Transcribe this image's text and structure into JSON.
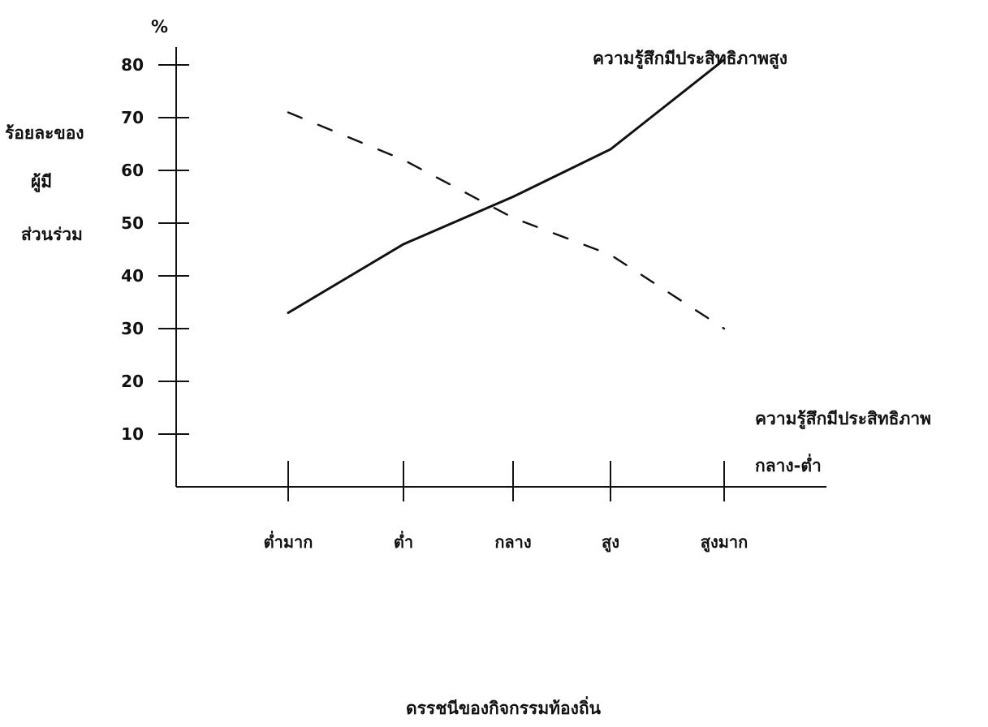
{
  "chart_data": {
    "type": "line",
    "unit": "%",
    "ylabel": [
      "ร้อยละของ",
      "ผู้มี",
      "ส่วนร่วม"
    ],
    "xlabel": "ดรรชนีของกิจกรรมท้องถิ่น",
    "categories": [
      "ต่ำมาก",
      "ต่ำ",
      "กลาง",
      "สูง",
      "สูงมาก"
    ],
    "y_ticks": [
      "10",
      "20",
      "30",
      "40",
      "50",
      "60",
      "70",
      "80"
    ],
    "ylim": [
      0,
      80
    ],
    "grid": false,
    "series": [
      {
        "name": "ความรู้สึกมีประสิทธิภาพสูง",
        "style": "solid",
        "values": [
          33,
          46,
          55,
          64,
          81
        ]
      },
      {
        "name": "ความรู้สึกมีประสิทธิภาพ กลาง-ต่ำ",
        "name_lines": [
          "ความรู้สึกมีประสิทธิภาพ",
          "กลาง-ต่ำ"
        ],
        "style": "dashed",
        "values": [
          71,
          62,
          51,
          44,
          30
        ]
      }
    ],
    "colors": {
      "ink": "#111111",
      "background": "#ffffff"
    }
  }
}
